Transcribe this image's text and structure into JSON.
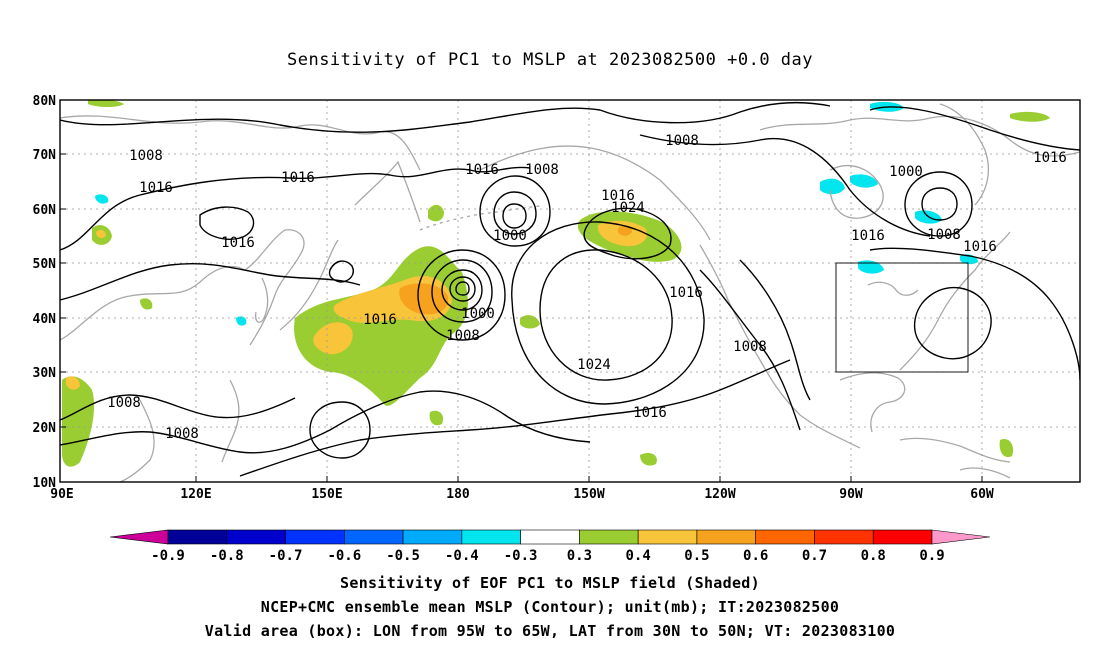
{
  "title": "Sensitivity of PC1 to MSLP at 2023082500 +0.0 day",
  "map": {
    "lat_labels": [
      "80N",
      "70N",
      "60N",
      "50N",
      "40N",
      "30N",
      "20N",
      "10N"
    ],
    "lon_labels": [
      "90E",
      "120E",
      "150E",
      "180",
      "150W",
      "120W",
      "90W",
      "60W"
    ],
    "valid_box": {
      "lon_from": "95W",
      "lon_to": "65W",
      "lat_from": "30N",
      "lat_to": "50N"
    },
    "contour_labels": [
      "1008",
      "1016",
      "1016",
      "1016",
      "1016",
      "1008",
      "1016",
      "1000",
      "1016",
      "1024",
      "1008",
      "1000",
      "1016",
      "1000",
      "1008",
      "1016",
      "1024",
      "1008",
      "1016",
      "1008",
      "1016",
      "1008",
      "1016"
    ],
    "colors": {
      "coast": "#a8a8a8",
      "contour": "#000000",
      "green": "#9acd32",
      "yellow": "#f7c43a",
      "orange": "#f7a21e",
      "cyan": "#00e5ee"
    }
  },
  "colorbar": {
    "labels": [
      "-0.9",
      "-0.8",
      "-0.7",
      "-0.6",
      "-0.5",
      "-0.4",
      "-0.3",
      "0.3",
      "0.4",
      "0.5",
      "0.6",
      "0.7",
      "0.8",
      "0.9"
    ],
    "colors": [
      "#cc0099",
      "#000099",
      "#0000cc",
      "#0033ff",
      "#0066ff",
      "#00aaff",
      "#00e5ee",
      "#ffffff",
      "#9acd32",
      "#f7c43a",
      "#f7a21e",
      "#ff6600",
      "#ff3300",
      "#ff0000",
      "#ff99cc"
    ]
  },
  "captions": [
    "Sensitivity of EOF PC1 to MSLP field (Shaded)",
    "NCEP+CMC ensemble mean MSLP (Contour); unit(mb); IT:2023082500",
    "Valid area (box): LON from 95W to 65W, LAT from 30N to 50N; VT: 2023083100"
  ]
}
